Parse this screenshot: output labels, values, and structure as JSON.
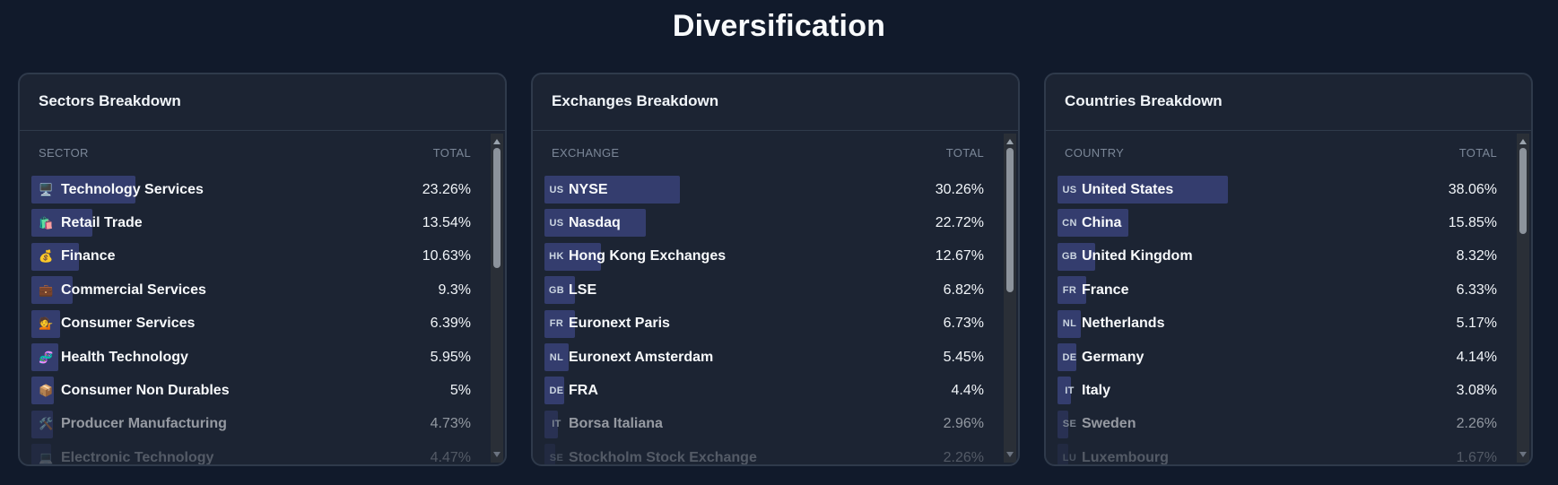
{
  "page": {
    "title": "Diversification"
  },
  "colors": {
    "background": "#111a2b",
    "card": "#1c2433",
    "bar": "#343d6e"
  },
  "sectors": {
    "title": "Sectors Breakdown",
    "col_name": "SECTOR",
    "col_total": "TOTAL",
    "rows": [
      {
        "icon": "🖥️",
        "icon_name": "desktop-computer-icon",
        "name": "Technology Services",
        "total": "23.26%",
        "share": 23.26
      },
      {
        "icon": "🛍️",
        "icon_name": "shopping-bags-icon",
        "name": "Retail Trade",
        "total": "13.54%",
        "share": 13.54
      },
      {
        "icon": "💰",
        "icon_name": "money-bag-icon",
        "name": "Finance",
        "total": "10.63%",
        "share": 10.63
      },
      {
        "icon": "💼",
        "icon_name": "briefcase-icon",
        "name": "Commercial Services",
        "total": "9.3%",
        "share": 9.3
      },
      {
        "icon": "💁",
        "icon_name": "person-tipping-hand-icon",
        "name": "Consumer Services",
        "total": "6.39%",
        "share": 6.39
      },
      {
        "icon": "🧬",
        "icon_name": "dna-icon",
        "name": "Health Technology",
        "total": "5.95%",
        "share": 5.95
      },
      {
        "icon": "📦",
        "icon_name": "package-icon",
        "name": "Consumer Non Durables",
        "total": "5%",
        "share": 5.0
      },
      {
        "icon": "🛠️",
        "icon_name": "tools-icon",
        "name": "Producer Manufacturing",
        "total": "4.73%",
        "share": 4.73
      },
      {
        "icon": "💻",
        "icon_name": "laptop-icon",
        "name": "Electronic Technology",
        "total": "4.47%",
        "share": 4.47
      }
    ]
  },
  "exchanges": {
    "title": "Exchanges Breakdown",
    "col_name": "EXCHANGE",
    "col_total": "TOTAL",
    "rows": [
      {
        "code": "US",
        "name": "NYSE",
        "total": "30.26%",
        "share": 30.26
      },
      {
        "code": "US",
        "name": "Nasdaq",
        "total": "22.72%",
        "share": 22.72
      },
      {
        "code": "HK",
        "name": "Hong Kong Exchanges",
        "total": "12.67%",
        "share": 12.67
      },
      {
        "code": "GB",
        "name": "LSE",
        "total": "6.82%",
        "share": 6.82
      },
      {
        "code": "FR",
        "name": "Euronext Paris",
        "total": "6.73%",
        "share": 6.73
      },
      {
        "code": "NL",
        "name": "Euronext Amsterdam",
        "total": "5.45%",
        "share": 5.45
      },
      {
        "code": "DE",
        "name": "FRA",
        "total": "4.4%",
        "share": 4.4
      },
      {
        "code": "IT",
        "name": "Borsa Italiana",
        "total": "2.96%",
        "share": 2.96
      },
      {
        "code": "SE",
        "name": "Stockholm Stock Exchange",
        "total": "2.26%",
        "share": 2.26
      }
    ]
  },
  "countries": {
    "title": "Countries Breakdown",
    "col_name": "COUNTRY",
    "col_total": "TOTAL",
    "rows": [
      {
        "code": "US",
        "name": "United States",
        "total": "38.06%",
        "share": 38.06
      },
      {
        "code": "CN",
        "name": "China",
        "total": "15.85%",
        "share": 15.85
      },
      {
        "code": "GB",
        "name": "United Kingdom",
        "total": "8.32%",
        "share": 8.32
      },
      {
        "code": "FR",
        "name": "France",
        "total": "6.33%",
        "share": 6.33
      },
      {
        "code": "NL",
        "name": "Netherlands",
        "total": "5.17%",
        "share": 5.17
      },
      {
        "code": "DE",
        "name": "Germany",
        "total": "4.14%",
        "share": 4.14
      },
      {
        "code": "IT",
        "name": "Italy",
        "total": "3.08%",
        "share": 3.08
      },
      {
        "code": "SE",
        "name": "Sweden",
        "total": "2.26%",
        "share": 2.26
      },
      {
        "code": "LU",
        "name": "Luxembourg",
        "total": "1.67%",
        "share": 1.67
      }
    ]
  }
}
